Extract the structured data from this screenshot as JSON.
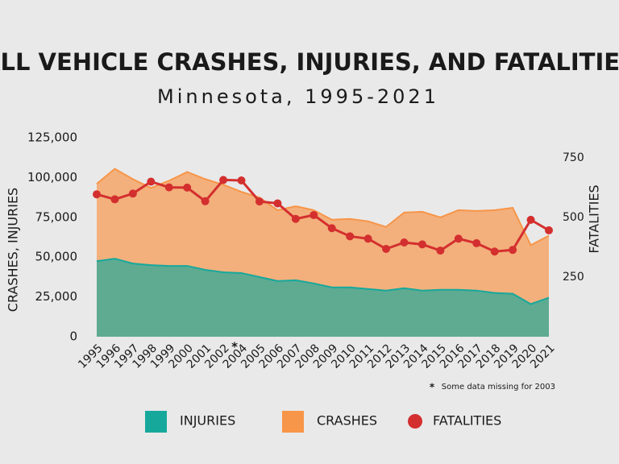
{
  "chart_data": {
    "type": "area",
    "title": "ALL VEHICLE CRASHES, INJURIES, AND FATALITIES",
    "subtitle": "Minnesota, 1995-2021",
    "y_label": "CRASHES, INJURIES",
    "y2_label": "FATALITIES",
    "categories": [
      "1995",
      "1996",
      "1997",
      "1998",
      "1999",
      "2000",
      "2001",
      "2002",
      "2004",
      "2005",
      "2006",
      "2007",
      "2008",
      "2009",
      "2010",
      "2011",
      "2012",
      "2013",
      "2014",
      "2015",
      "2016",
      "2017",
      "2018",
      "2019",
      "2020",
      "2021"
    ],
    "series": [
      {
        "name": "INJURIES",
        "type": "area",
        "color": "#17a89c",
        "axis": "y",
        "values": [
          47500,
          49000,
          46000,
          45000,
          44500,
          44500,
          42000,
          40500,
          40000,
          37500,
          35000,
          35500,
          33500,
          31000,
          31000,
          30000,
          29000,
          30500,
          29000,
          29500,
          29500,
          29000,
          27500,
          27000,
          20500,
          24500
        ]
      },
      {
        "name": "CRASHES",
        "type": "area",
        "color": "#f79548",
        "axis": "y",
        "values": [
          96000,
          105500,
          99000,
          93500,
          98000,
          103500,
          99000,
          95500,
          91000,
          87500,
          79500,
          82000,
          79500,
          73500,
          74000,
          72500,
          69000,
          78000,
          78500,
          75000,
          79500,
          79000,
          79500,
          81000,
          57500,
          63500
        ]
      },
      {
        "name": "FATALITIES",
        "type": "line",
        "color": "#d42f2f",
        "axis": "y2",
        "values": [
          597,
          576,
          600,
          650,
          626,
          625,
          568,
          657,
          655,
          567,
          559,
          494,
          510,
          455,
          421,
          411,
          368,
          395,
          387,
          361,
          411,
          392,
          357,
          364,
          490,
          446
        ]
      }
    ],
    "ylim": [
      0,
      125000
    ],
    "yticks": [
      0,
      {
        "value": 25000,
        "label": "25,000"
      },
      {
        "value": 50000,
        "label": "50,000"
      },
      {
        "value": 75000,
        "label": "75,000"
      },
      {
        "value": 100000,
        "label": "100,000"
      },
      {
        "value": 125000,
        "label": "125,000"
      }
    ],
    "y2lim": [
      0,
      834
    ],
    "y2ticks": [
      250,
      500,
      750
    ],
    "y2_color": "#d42f2f",
    "footnote_marker": "*",
    "footnote": "Some data missing for 2003"
  }
}
